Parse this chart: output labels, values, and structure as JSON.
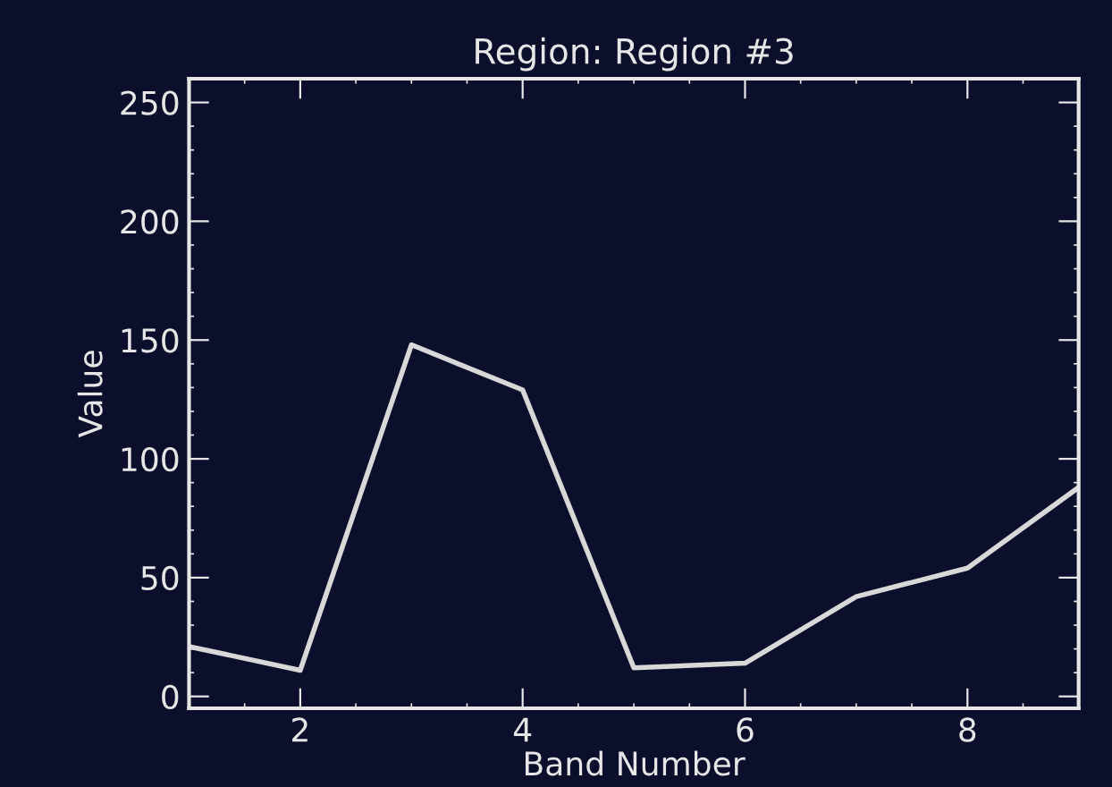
{
  "chart_data": {
    "type": "line",
    "title": "Region: Region #3",
    "xlabel": "Band Number",
    "ylabel": "Value",
    "x": [
      1,
      2,
      3,
      4,
      5,
      6,
      7,
      8,
      9
    ],
    "series": [
      {
        "color": "#d8d8d8",
        "values": [
          21,
          11,
          148,
          129,
          12,
          14,
          42,
          54,
          88
        ]
      }
    ],
    "xlim": [
      1,
      9
    ],
    "ylim": [
      -5,
      260
    ],
    "xticks": [
      2,
      4,
      6,
      8
    ],
    "yticks": [
      0,
      50,
      100,
      150,
      200,
      250
    ],
    "grid": false,
    "legend": false,
    "marker": "none",
    "line_style": "solid"
  }
}
